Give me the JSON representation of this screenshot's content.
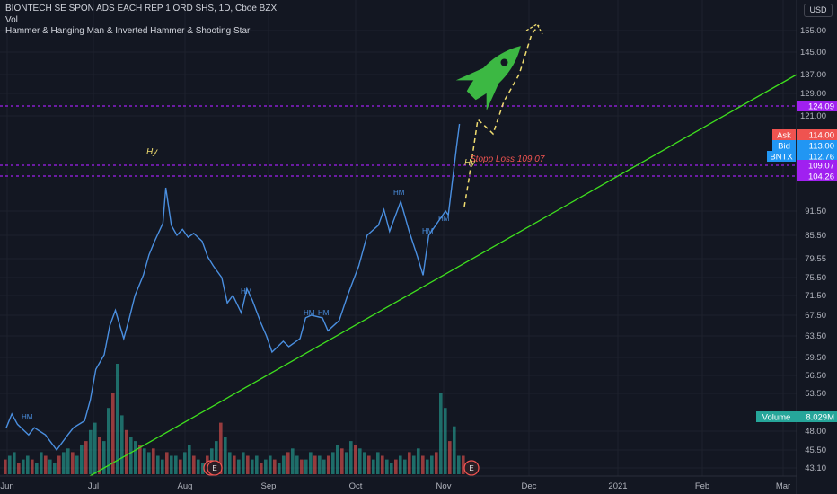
{
  "header": {
    "symbol_line": "BIONTECH SE SPON ADS EACH REP 1 ORD SHS, 1D, Cboe BZX",
    "volume_label": "Vol",
    "indicator_label": "Hammer & Hanging Man & Inverted Hammer & Shooting Star"
  },
  "currency_button": "USD",
  "colors": {
    "price_line": "#4a8fe0",
    "trendline": "#3fe01e",
    "level_line": "#a020f0",
    "vol_up": "#26a69a",
    "vol_down": "#ef5350",
    "rocket": "#3cb843",
    "annotation": "#f0dd70",
    "stop_loss": "#ef5350"
  },
  "chart_data": {
    "type": "line",
    "y_ticks": [
      "155.00",
      "145.00",
      "137.00",
      "129.00",
      "121.00",
      "91.50",
      "85.50",
      "79.55",
      "75.50",
      "71.50",
      "67.50",
      "63.50",
      "59.50",
      "56.50",
      "53.50",
      "48.00",
      "45.50",
      "43.10"
    ],
    "x_ticks": [
      "Jun",
      "Jul",
      "Aug",
      "Sep",
      "Oct",
      "Nov",
      "Dec",
      "2021",
      "Feb",
      "Mar"
    ],
    "price_series": [
      {
        "date": "2020-06-01",
        "close": 48.5
      },
      {
        "date": "2020-06-03",
        "close": 50.5
      },
      {
        "date": "2020-06-05",
        "close": 49.0
      },
      {
        "date": "2020-06-09",
        "close": 47.5
      },
      {
        "date": "2020-06-11",
        "close": 48.5
      },
      {
        "date": "2020-06-15",
        "close": 47.5
      },
      {
        "date": "2020-06-17",
        "close": 46.5
      },
      {
        "date": "2020-06-19",
        "close": 45.5
      },
      {
        "date": "2020-06-23",
        "close": 47.5
      },
      {
        "date": "2020-06-25",
        "close": 48.5
      },
      {
        "date": "2020-06-29",
        "close": 49.5
      },
      {
        "date": "2020-07-01",
        "close": 52.5
      },
      {
        "date": "2020-07-03",
        "close": 57.5
      },
      {
        "date": "2020-07-06",
        "close": 60.0
      },
      {
        "date": "2020-07-08",
        "close": 65.5
      },
      {
        "date": "2020-07-10",
        "close": 68.5
      },
      {
        "date": "2020-07-13",
        "close": 63.0
      },
      {
        "date": "2020-07-15",
        "close": 67.0
      },
      {
        "date": "2020-07-17",
        "close": 71.5
      },
      {
        "date": "2020-07-20",
        "close": 76.0
      },
      {
        "date": "2020-07-22",
        "close": 80.5
      },
      {
        "date": "2020-07-24",
        "close": 84.0
      },
      {
        "date": "2020-07-27",
        "close": 88.5
      },
      {
        "date": "2020-07-28",
        "close": 100.0
      },
      {
        "date": "2020-07-30",
        "close": 88.0
      },
      {
        "date": "2020-08-01",
        "close": 85.5
      },
      {
        "date": "2020-08-03",
        "close": 87.0
      },
      {
        "date": "2020-08-05",
        "close": 85.0
      },
      {
        "date": "2020-08-07",
        "close": 86.0
      },
      {
        "date": "2020-08-10",
        "close": 84.0
      },
      {
        "date": "2020-08-12",
        "close": 80.0
      },
      {
        "date": "2020-08-14",
        "close": 78.0
      },
      {
        "date": "2020-08-17",
        "close": 75.5
      },
      {
        "date": "2020-08-19",
        "close": 70.0
      },
      {
        "date": "2020-08-21",
        "close": 71.5
      },
      {
        "date": "2020-08-24",
        "close": 68.0
      },
      {
        "date": "2020-08-26",
        "close": 73.0
      },
      {
        "date": "2020-08-28",
        "close": 70.5
      },
      {
        "date": "2020-08-31",
        "close": 66.0
      },
      {
        "date": "2020-09-02",
        "close": 63.5
      },
      {
        "date": "2020-09-04",
        "close": 60.5
      },
      {
        "date": "2020-09-08",
        "close": 62.5
      },
      {
        "date": "2020-09-10",
        "close": 61.5
      },
      {
        "date": "2020-09-14",
        "close": 63.0
      },
      {
        "date": "2020-09-16",
        "close": 67.0
      },
      {
        "date": "2020-09-18",
        "close": 67.5
      },
      {
        "date": "2020-09-22",
        "close": 67.0
      },
      {
        "date": "2020-09-24",
        "close": 64.5
      },
      {
        "date": "2020-09-28",
        "close": 66.5
      },
      {
        "date": "2020-10-01",
        "close": 71.5
      },
      {
        "date": "2020-10-05",
        "close": 78.0
      },
      {
        "date": "2020-10-08",
        "close": 85.5
      },
      {
        "date": "2020-10-12",
        "close": 88.0
      },
      {
        "date": "2020-10-14",
        "close": 92.0
      },
      {
        "date": "2020-10-16",
        "close": 86.5
      },
      {
        "date": "2020-10-20",
        "close": 95.0
      },
      {
        "date": "2020-10-23",
        "close": 86.5
      },
      {
        "date": "2020-10-26",
        "close": 80.0
      },
      {
        "date": "2020-10-28",
        "close": 76.0
      },
      {
        "date": "2020-10-30",
        "close": 85.5
      },
      {
        "date": "2020-11-03",
        "close": 89.5
      },
      {
        "date": "2020-11-05",
        "close": 91.5
      },
      {
        "date": "2020-11-06",
        "close": 90.5
      },
      {
        "date": "2020-11-09",
        "close": 113.0
      },
      {
        "date": "2020-11-10",
        "close": 118.0
      }
    ],
    "trendline": {
      "label": "support trendline",
      "color": "#3fe01e"
    },
    "horizontal_levels": [
      124.09,
      109.07,
      104.26
    ],
    "price_labels": [
      {
        "label": "",
        "value": "124.09",
        "color": "#a020f0"
      },
      {
        "label": "Ask",
        "value": "114.00",
        "color": "#ef5350"
      },
      {
        "label": "Bid",
        "value": "113.00",
        "color": "#2196f3"
      },
      {
        "label": "BNTX",
        "value": "112.76",
        "color": "#2196f3"
      },
      {
        "label": "",
        "value": "109.07",
        "color": "#a020f0"
      },
      {
        "label": "",
        "value": "104.26",
        "color": "#a020f0"
      }
    ],
    "annotations": {
      "stop_loss": "Stopp Loss 109.07",
      "hy_labels": [
        "Hy",
        "Hy"
      ],
      "hm_labels": [
        "HM",
        "HM",
        "HM",
        "HM",
        "HM",
        "HM",
        "HM"
      ],
      "earnings_markers": [
        "E",
        "E",
        "E"
      ]
    },
    "volume_label": {
      "label": "Volume",
      "value": "8.029M"
    },
    "volume_bars": [
      4,
      5,
      6,
      3,
      4,
      5,
      4,
      3,
      6,
      5,
      4,
      3,
      5,
      6,
      7,
      6,
      5,
      8,
      9,
      12,
      14,
      10,
      9,
      18,
      22,
      30,
      16,
      12,
      10,
      9,
      8,
      7,
      6,
      7,
      5,
      4,
      6,
      5,
      5,
      4,
      6,
      8,
      5,
      4,
      3,
      5,
      7,
      9,
      14,
      10,
      6,
      5,
      4,
      6,
      5,
      4,
      5,
      3,
      4,
      5,
      4,
      3,
      5,
      6,
      7,
      5,
      4,
      4,
      6,
      5,
      5,
      4,
      5,
      6,
      8,
      7,
      6,
      9,
      8,
      7,
      6,
      5,
      4,
      6,
      5,
      4,
      3,
      4,
      5,
      4,
      6,
      5,
      7,
      5,
      4,
      5,
      6,
      22,
      18,
      9,
      13,
      5,
      5
    ]
  }
}
